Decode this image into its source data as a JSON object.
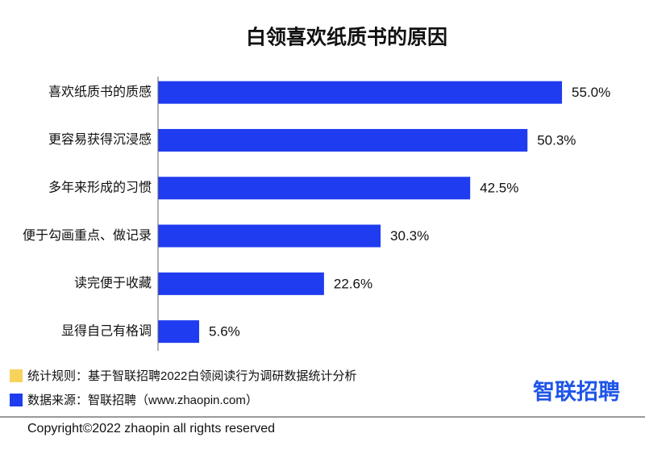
{
  "chart_data": {
    "type": "bar",
    "orientation": "horizontal",
    "title": "白领喜欢纸质书的原因",
    "categories": [
      "喜欢纸质书的质感",
      "更容易获得沉浸感",
      "多年来形成的习惯",
      "便于勾画重点、做记录",
      "读完便于收藏",
      "显得自己有格调"
    ],
    "values": [
      55.0,
      50.3,
      42.5,
      30.3,
      22.6,
      5.6
    ],
    "value_labels": [
      "55.0%",
      "50.3%",
      "42.5%",
      "30.3%",
      "22.6%",
      "5.6%"
    ],
    "color": "#1f3cf0"
  },
  "notes": [
    "统计规则：基于智联招聘2022白领阅读行为调研数据统计分析",
    "数据来源：智联招聘（www.zhaopin.com）"
  ],
  "logo": "智联招聘",
  "copyright": "Copyright©2022 zhaopin all rights reserved"
}
